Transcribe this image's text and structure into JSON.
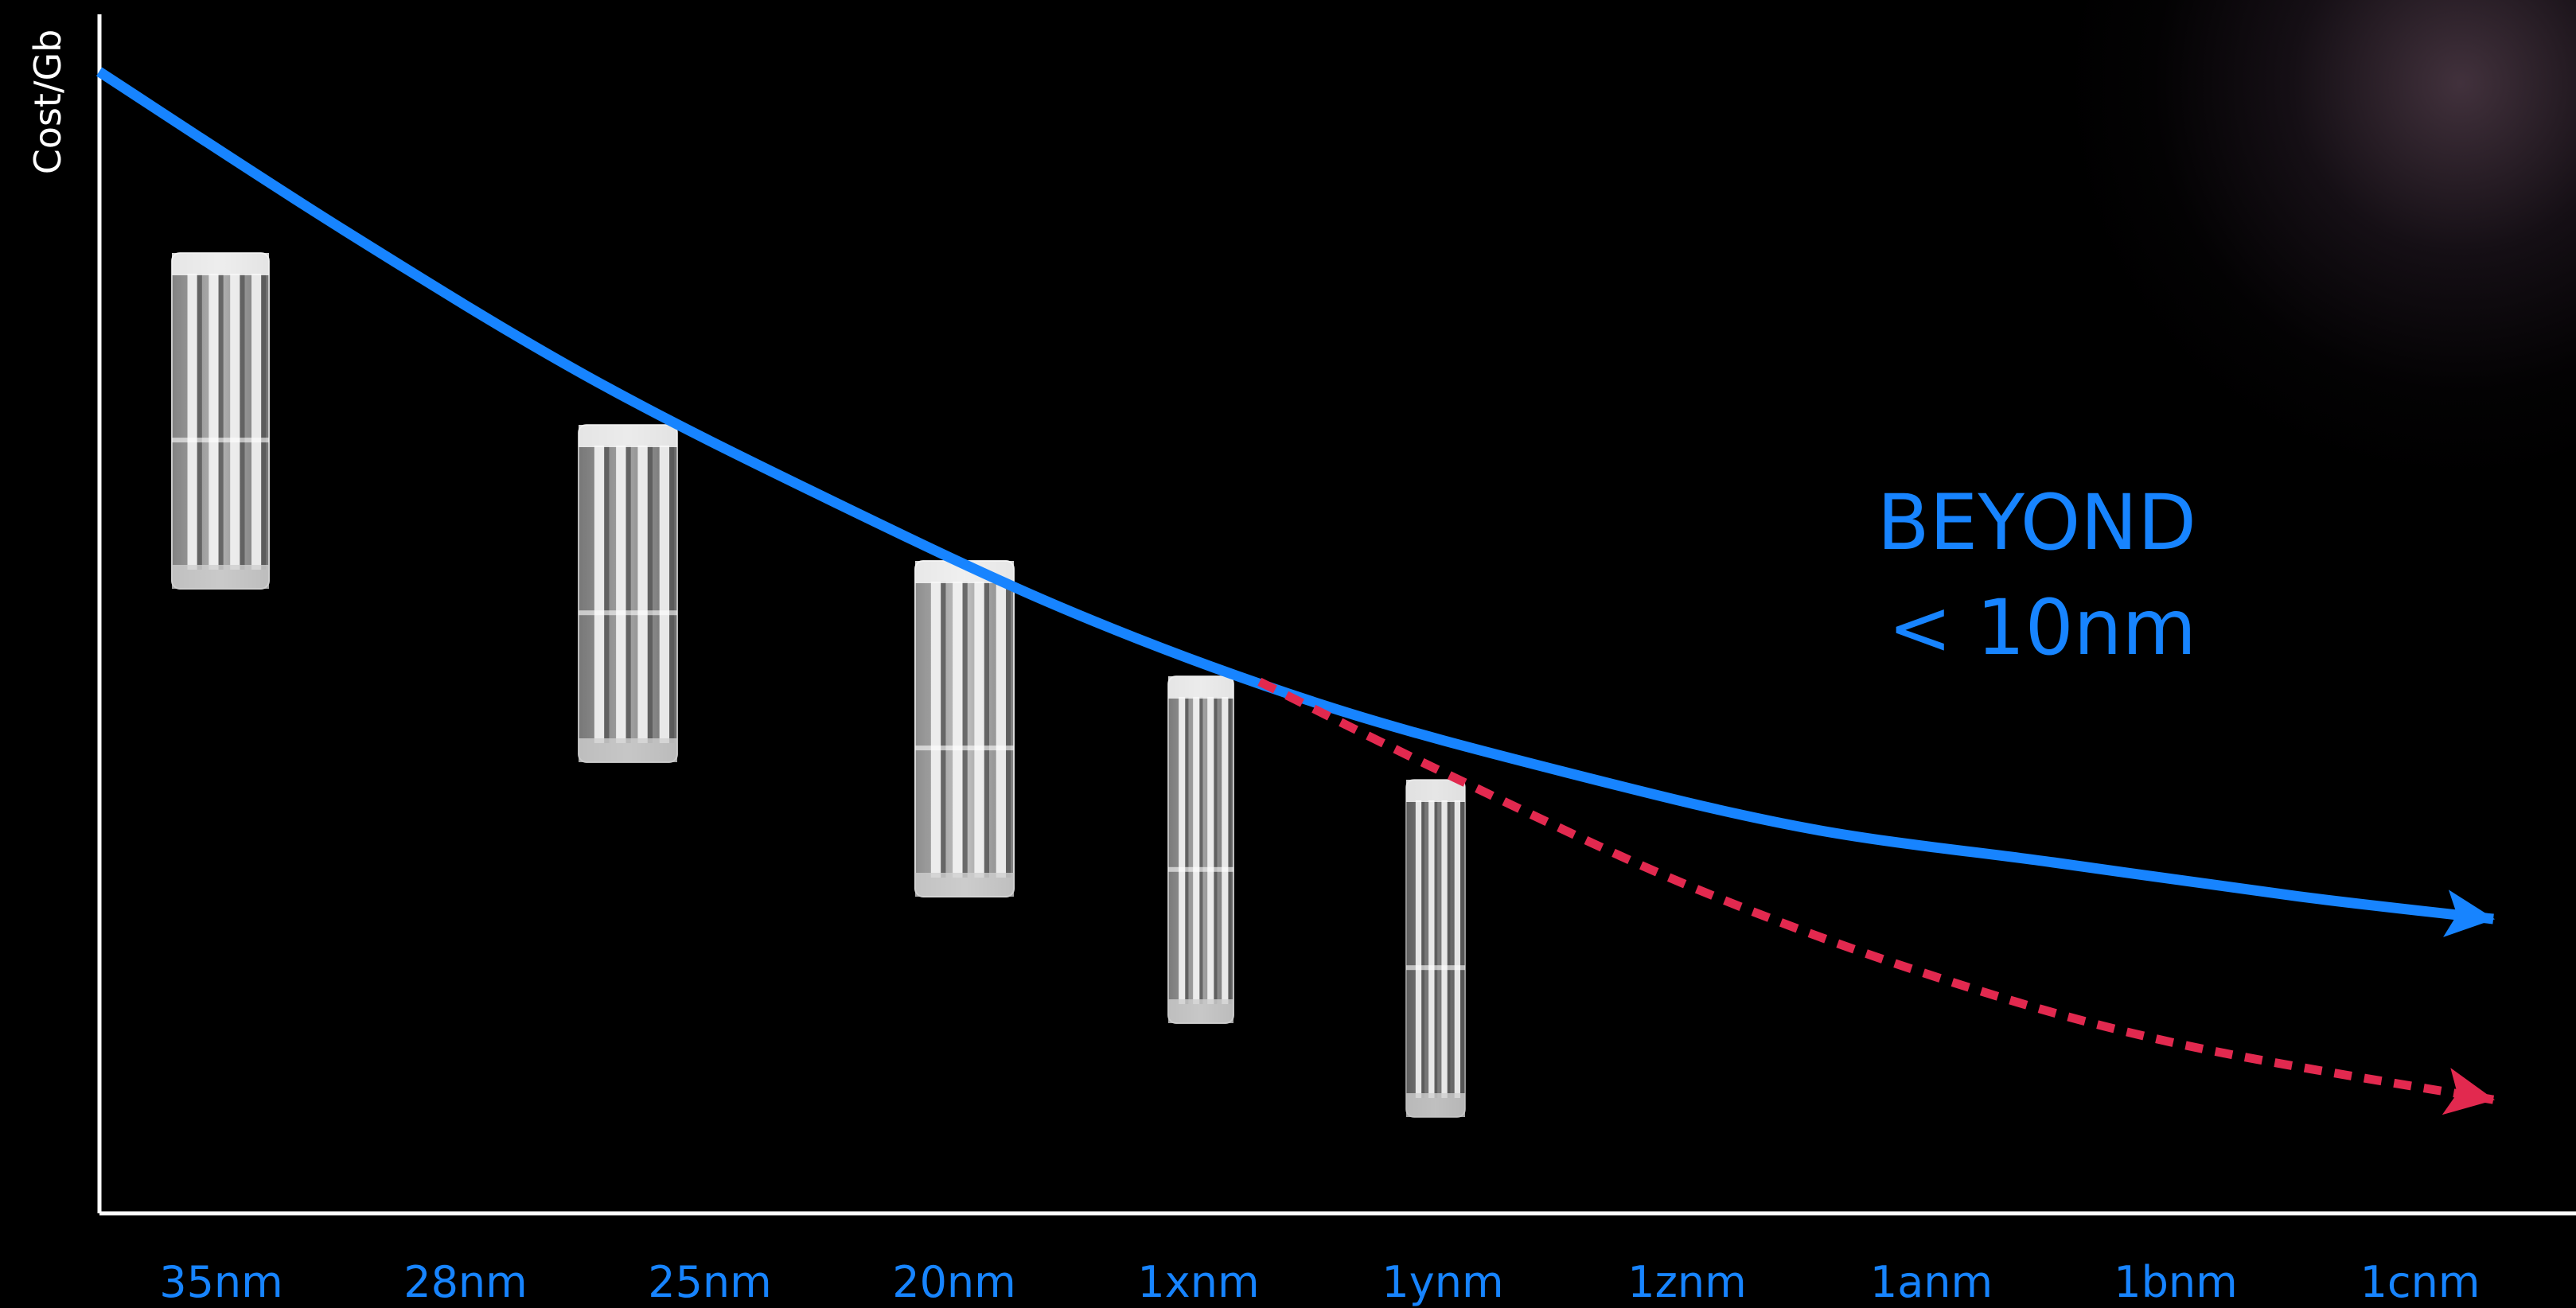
{
  "chart_data": {
    "type": "line",
    "title": "",
    "xlabel": "",
    "ylabel": "Cost/Gb",
    "categories": [
      "35nm",
      "28nm",
      "25nm",
      "20nm",
      "1xnm",
      "1ynm",
      "1znm",
      "1anm",
      "1bnm",
      "1cnm",
      "· ·"
    ],
    "y_axis_ticks": false,
    "grid": false,
    "series": [
      {
        "color": "#1784ff",
        "style": "solid-arrow",
        "x": [
          -0.5,
          0.5,
          1.5,
          2.5,
          3.5,
          4.5,
          5.5,
          6.5,
          7.5,
          8.5,
          9.3
        ],
        "values": [
          1.0,
          0.86,
          0.73,
          0.62,
          0.52,
          0.44,
          0.38,
          0.33,
          0.3,
          0.27,
          0.25
        ]
      },
      {
        "color": "#e2294f",
        "style": "dashed-arrow",
        "x": [
          4.25,
          5.0,
          6.0,
          7.0,
          8.0,
          9.3
        ],
        "values": [
          0.46,
          0.38,
          0.28,
          0.2,
          0.14,
          0.09
        ]
      }
    ],
    "annotations": [
      {
        "text": "BEYOND",
        "color": "#1784ff"
      },
      {
        "text": "< 10nm",
        "color": "#1784ff"
      }
    ],
    "images": [
      {
        "category": "35nm",
        "name": "cell-cross-section-35nm"
      },
      {
        "category": "28nm",
        "name": "cell-cross-section-28nm"
      },
      {
        "category": "25nm",
        "name": "cell-cross-section-25nm"
      },
      {
        "category": "20nm",
        "name": "cell-cross-section-20nm"
      },
      {
        "category": "1xnm",
        "name": "cell-cross-section-1xnm"
      }
    ]
  }
}
